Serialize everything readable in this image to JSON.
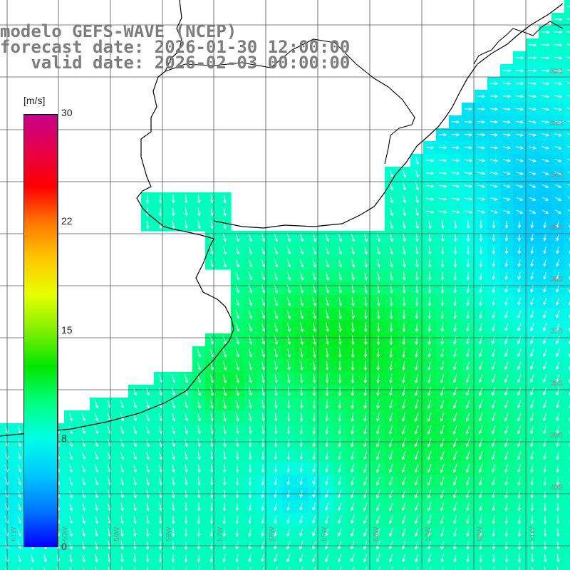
{
  "title": {
    "line1": "modelo GEFS-WAVE (NCEP)",
    "line2": "forecast date: 2026-01-30 12:00:00",
    "line3": "   valid date: 2026-02-03 00:00:00"
  },
  "colorbar": {
    "unit": "[m/s]",
    "ticks": [
      "30",
      "22",
      "15",
      "8",
      "0"
    ],
    "tick_values": [
      30,
      22,
      15,
      8,
      0
    ],
    "range": [
      0,
      30
    ],
    "colors": [
      "#0000ff",
      "#0077ff",
      "#00c8ff",
      "#00ffe6",
      "#00ff80",
      "#00e600",
      "#80f000",
      "#e6ff00",
      "#ffc800",
      "#ff7800",
      "#ff0000",
      "#e60046",
      "#c8008c"
    ]
  },
  "map": {
    "lat_labels": [
      "32S",
      "33S",
      "34S",
      "35S",
      "36S",
      "37S",
      "38S",
      "39S",
      "40S"
    ],
    "lon_labels": [
      "61W",
      "60W",
      "59W",
      "58W",
      "57W",
      "56W",
      "55W",
      "54W",
      "53W",
      "52W",
      "51W"
    ],
    "land_color": "#ffffff",
    "coast_color": "#000000",
    "grid_color": "#555555",
    "arrow_color": "#ffffff"
  }
}
